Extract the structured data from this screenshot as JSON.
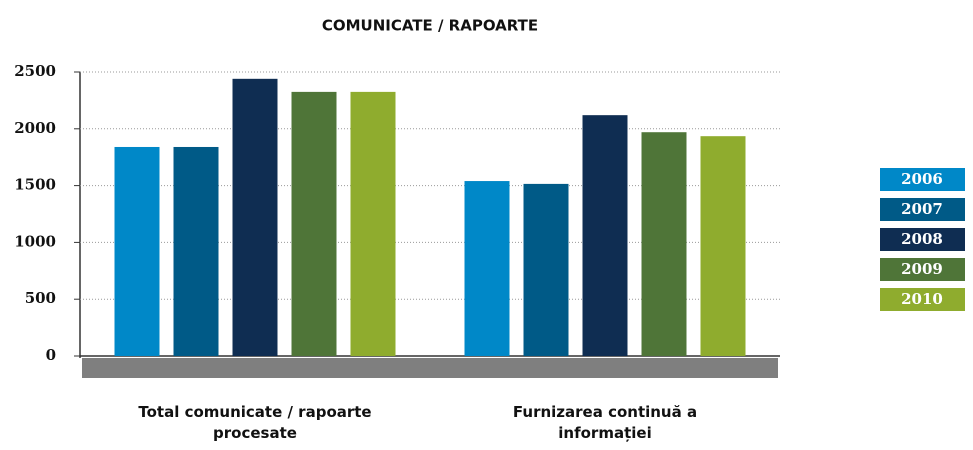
{
  "chart_data": {
    "type": "bar",
    "title": "COMUNICATE / RAPOARTE",
    "categories": [
      "Total comunicate / rapoarte procesate",
      "Furnizarea continuă a informației"
    ],
    "series": [
      {
        "name": "2006",
        "color": "#0088c8",
        "values": [
          1840,
          1540
        ]
      },
      {
        "name": "2007",
        "color": "#005a87",
        "values": [
          1840,
          1515
        ]
      },
      {
        "name": "2008",
        "color": "#0f2d52",
        "values": [
          2440,
          2120
        ]
      },
      {
        "name": "2009",
        "color": "#4f7538",
        "values": [
          2325,
          1970
        ]
      },
      {
        "name": "2010",
        "color": "#8fac2e",
        "values": [
          2325,
          1935
        ]
      }
    ],
    "ylim": [
      0,
      2500
    ],
    "yticks": [
      0,
      500,
      1000,
      1500,
      2000,
      2500
    ],
    "grid": true,
    "legend": "right"
  }
}
